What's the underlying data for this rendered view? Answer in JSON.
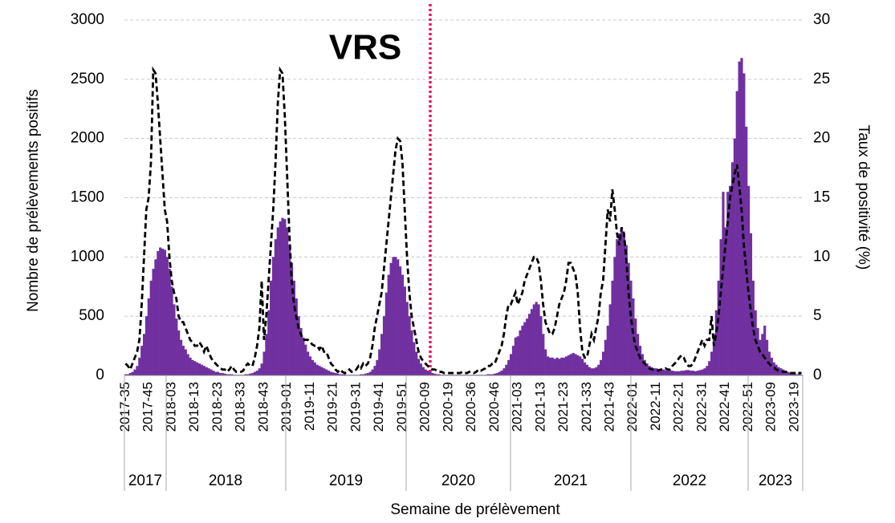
{
  "chart_data": {
    "type": "bar",
    "annotation": "VRS",
    "ylabel": "Nombre de prélèvements positifs",
    "y2label": "Taux de positivité (%)",
    "xlabel": "Semaine de prélèvement",
    "ylim": [
      0,
      3000
    ],
    "yticks": [
      0,
      500,
      1000,
      1500,
      2000,
      2500,
      3000
    ],
    "y2lim": [
      0,
      30
    ],
    "y2ticks": [
      0,
      5,
      10,
      15,
      20,
      25,
      30
    ],
    "grid": true,
    "year_labels": [
      "2017",
      "2018",
      "2019",
      "2020",
      "2021",
      "2022",
      "2023"
    ],
    "categories": [
      "2017-35",
      null,
      null,
      null,
      null,
      null,
      null,
      null,
      null,
      null,
      "2017-45",
      null,
      null,
      null,
      null,
      null,
      null,
      null,
      null,
      null,
      "2018-03",
      null,
      null,
      null,
      null,
      null,
      null,
      null,
      null,
      null,
      "2018-13",
      null,
      null,
      null,
      null,
      null,
      null,
      null,
      null,
      null,
      "2018-23",
      null,
      null,
      null,
      null,
      null,
      null,
      null,
      null,
      null,
      "2018-33",
      null,
      null,
      null,
      null,
      null,
      null,
      null,
      null,
      null,
      "2018-43",
      null,
      null,
      null,
      null,
      null,
      null,
      null,
      null,
      null,
      "2019-01",
      null,
      null,
      null,
      null,
      null,
      null,
      null,
      null,
      null,
      "2019-11",
      null,
      null,
      null,
      null,
      null,
      null,
      null,
      null,
      null,
      "2019-21",
      null,
      null,
      null,
      null,
      null,
      null,
      null,
      null,
      null,
      "2019-31",
      null,
      null,
      null,
      null,
      null,
      null,
      null,
      null,
      null,
      "2019-41",
      null,
      null,
      null,
      null,
      null,
      null,
      null,
      null,
      null,
      "2019-51",
      null,
      null,
      null,
      null,
      null,
      null,
      null,
      null,
      null,
      "2020-09",
      null,
      null,
      null,
      null,
      null,
      null,
      null,
      null,
      null,
      "2020-19",
      null,
      null,
      null,
      null,
      null,
      null,
      null,
      null,
      null,
      "2020-36",
      null,
      null,
      null,
      null,
      null,
      null,
      null,
      null,
      null,
      "2020-46",
      null,
      null,
      null,
      null,
      null,
      null,
      null,
      null,
      null,
      "2021-03",
      null,
      null,
      null,
      null,
      null,
      null,
      null,
      null,
      null,
      "2021-13",
      null,
      null,
      null,
      null,
      null,
      null,
      null,
      null,
      null,
      "2021-23",
      null,
      null,
      null,
      null,
      null,
      null,
      null,
      null,
      null,
      "2021-33",
      null,
      null,
      null,
      null,
      null,
      null,
      null,
      null,
      null,
      "2021-43",
      null,
      null,
      null,
      null,
      null,
      null,
      null,
      null,
      null,
      "2022-01",
      null,
      null,
      null,
      null,
      null,
      null,
      null,
      null,
      null,
      "2022-11",
      null,
      null,
      null,
      null,
      null,
      null,
      null,
      null,
      null,
      "2022-21",
      null,
      null,
      null,
      null,
      null,
      null,
      null,
      null,
      null,
      "2022-31",
      null,
      null,
      null,
      null,
      null,
      null,
      null,
      null,
      null,
      "2022-41",
      null,
      null,
      null,
      null,
      null,
      null,
      null,
      null,
      null,
      "2022-51",
      null,
      null,
      null,
      null,
      null,
      null,
      null,
      null,
      null,
      "2023-09",
      null,
      null,
      null,
      null,
      null,
      null,
      null,
      null,
      null,
      "2023-19",
      null,
      null,
      null
    ],
    "series": [
      {
        "type": "bar",
        "color": "#7030a0",
        "values": [
          10,
          10,
          20,
          30,
          50,
          80,
          150,
          250,
          350,
          500,
          650,
          800,
          900,
          980,
          1050,
          1080,
          1070,
          1060,
          1000,
          900,
          750,
          600,
          480,
          380,
          300,
          250,
          220,
          180,
          150,
          130,
          120,
          110,
          100,
          90,
          80,
          70,
          60,
          50,
          40,
          30,
          30,
          20,
          20,
          15,
          10,
          10,
          10,
          5,
          5,
          5,
          5,
          5,
          10,
          10,
          15,
          20,
          30,
          40,
          60,
          100,
          200,
          350,
          550,
          800,
          1000,
          1150,
          1250,
          1300,
          1330,
          1320,
          1250,
          1100,
          950,
          800,
          650,
          500,
          400,
          320,
          260,
          200,
          160,
          130,
          110,
          90,
          80,
          70,
          60,
          50,
          40,
          30,
          25,
          20,
          15,
          10,
          10,
          10,
          5,
          5,
          5,
          5,
          5,
          5,
          10,
          10,
          15,
          20,
          30,
          50,
          80,
          130,
          220,
          350,
          500,
          700,
          850,
          950,
          1000,
          1000,
          980,
          920,
          850,
          750,
          620,
          500,
          380,
          280,
          200,
          140,
          100,
          70,
          50,
          40,
          30,
          20,
          15,
          10,
          10,
          5,
          5,
          5,
          5,
          5,
          5,
          5,
          5,
          5,
          5,
          5,
          5,
          5,
          5,
          5,
          5,
          5,
          5,
          5,
          5,
          10,
          10,
          10,
          15,
          20,
          30,
          40,
          60,
          90,
          130,
          180,
          250,
          320,
          330,
          380,
          420,
          450,
          480,
          520,
          560,
          600,
          620,
          600,
          500,
          350,
          220,
          160,
          150,
          150,
          140,
          150,
          140,
          150,
          150,
          160,
          170,
          180,
          190,
          180,
          170,
          160,
          140,
          110,
          90,
          70,
          60,
          60,
          70,
          90,
          130,
          200,
          300,
          420,
          600,
          800,
          1000,
          1150,
          1200,
          1250,
          1200,
          1100,
          950,
          800,
          650,
          480,
          350,
          250,
          180,
          130,
          100,
          80,
          70,
          60,
          60,
          55,
          50,
          50,
          45,
          40,
          40,
          40,
          35,
          35,
          35,
          40,
          40,
          45,
          45,
          40,
          40,
          35,
          40,
          45,
          50,
          60,
          80,
          120,
          200,
          350,
          550,
          800,
          1150,
          1550,
          1250,
          1550,
          1600,
          1800,
          2000,
          2400,
          2650,
          2680,
          2550,
          2100,
          1600,
          1200,
          800,
          550,
          400,
          300,
          350,
          420,
          300,
          200,
          150,
          110,
          90,
          70,
          60,
          50,
          40,
          30,
          25,
          20,
          15,
          10,
          10,
          5
        ]
      },
      {
        "type": "line",
        "axis": "y2",
        "color": "#000000",
        "dashed": true,
        "values": [
          1,
          0.8,
          0.5,
          1,
          1.5,
          2,
          3,
          6,
          10,
          14,
          15,
          18,
          25.8,
          25.5,
          23,
          20,
          17,
          14,
          13,
          10,
          8,
          7,
          6.5,
          5,
          4.5,
          4.5,
          4,
          3.5,
          3,
          2.8,
          2.5,
          2.5,
          2.8,
          2.5,
          2,
          2.5,
          2,
          1.5,
          1.2,
          1,
          0.8,
          0.6,
          0.5,
          0.5,
          0.3,
          0.5,
          0.8,
          0.5,
          0.3,
          0.3,
          0.3,
          0.4,
          0.8,
          1,
          0.8,
          0.8,
          1.5,
          2.5,
          4,
          8,
          3,
          5,
          8,
          11,
          14,
          18,
          23,
          25.8,
          25.5,
          22,
          17,
          12,
          8,
          6,
          5,
          4,
          3.5,
          3,
          3,
          3,
          2.8,
          2.6,
          2.5,
          2.5,
          2.2,
          2.5,
          2,
          2,
          1.5,
          1,
          0.8,
          0.5,
          0.3,
          0.5,
          0.3,
          0.2,
          0.3,
          0.5,
          0.3,
          0.3,
          0.5,
          0.8,
          0.6,
          1,
          0.8,
          1,
          1.5,
          2.5,
          4,
          5,
          6,
          7,
          9,
          11,
          13,
          15,
          17,
          19,
          20,
          19.8,
          18,
          14,
          10,
          7,
          5,
          4,
          3,
          2,
          1.5,
          1.2,
          1,
          0.8,
          0.6,
          0.5,
          0.5,
          0.4,
          0.3,
          0.3,
          0.2,
          0.2,
          0.2,
          0.2,
          0.2,
          0.2,
          0.2,
          0.2,
          0.3,
          0.2,
          0.2,
          0.3,
          0.3,
          0.2,
          0.3,
          0.5,
          0.4,
          0.5,
          0.6,
          0.8,
          0.8,
          1,
          1,
          1.5,
          2,
          2.5,
          3.5,
          5,
          6,
          6,
          6.5,
          7,
          6,
          6.5,
          7,
          8,
          8.5,
          9,
          9.5,
          10,
          10,
          9.5,
          8,
          6,
          4.5,
          4,
          3.5,
          3.5,
          4,
          5,
          6,
          6.5,
          7,
          8,
          9.5,
          9.5,
          9,
          8.5,
          7,
          4,
          2,
          1.5,
          1.5,
          2.5,
          3.5,
          3,
          4,
          5,
          7,
          8,
          11,
          14,
          13,
          15.7,
          14,
          12,
          11,
          12.5,
          12,
          10,
          7,
          5,
          3.5,
          2.5,
          2,
          1.5,
          1.2,
          1,
          0.8,
          0.6,
          0.5,
          0.5,
          0.5,
          0.4,
          0.5,
          0.5,
          0.6,
          0.5,
          0.5,
          0.8,
          1,
          1.2,
          1.5,
          1.7,
          1.5,
          1,
          0.8,
          0.8,
          1,
          1.5,
          2,
          2.5,
          3,
          2.5,
          3,
          3,
          5,
          2.5,
          3.5,
          5,
          7,
          9,
          11,
          13,
          15,
          16,
          17,
          17.8,
          16,
          14,
          11,
          9,
          7,
          5.5,
          4,
          3,
          2.5,
          2,
          1.8,
          1.5,
          1.2,
          1,
          0.8,
          0.7,
          0.5,
          0.4,
          0.4,
          0.3,
          0.3,
          0.3,
          0.2,
          0.2,
          0.2,
          0.3,
          0.2,
          0.2
        ]
      }
    ]
  }
}
